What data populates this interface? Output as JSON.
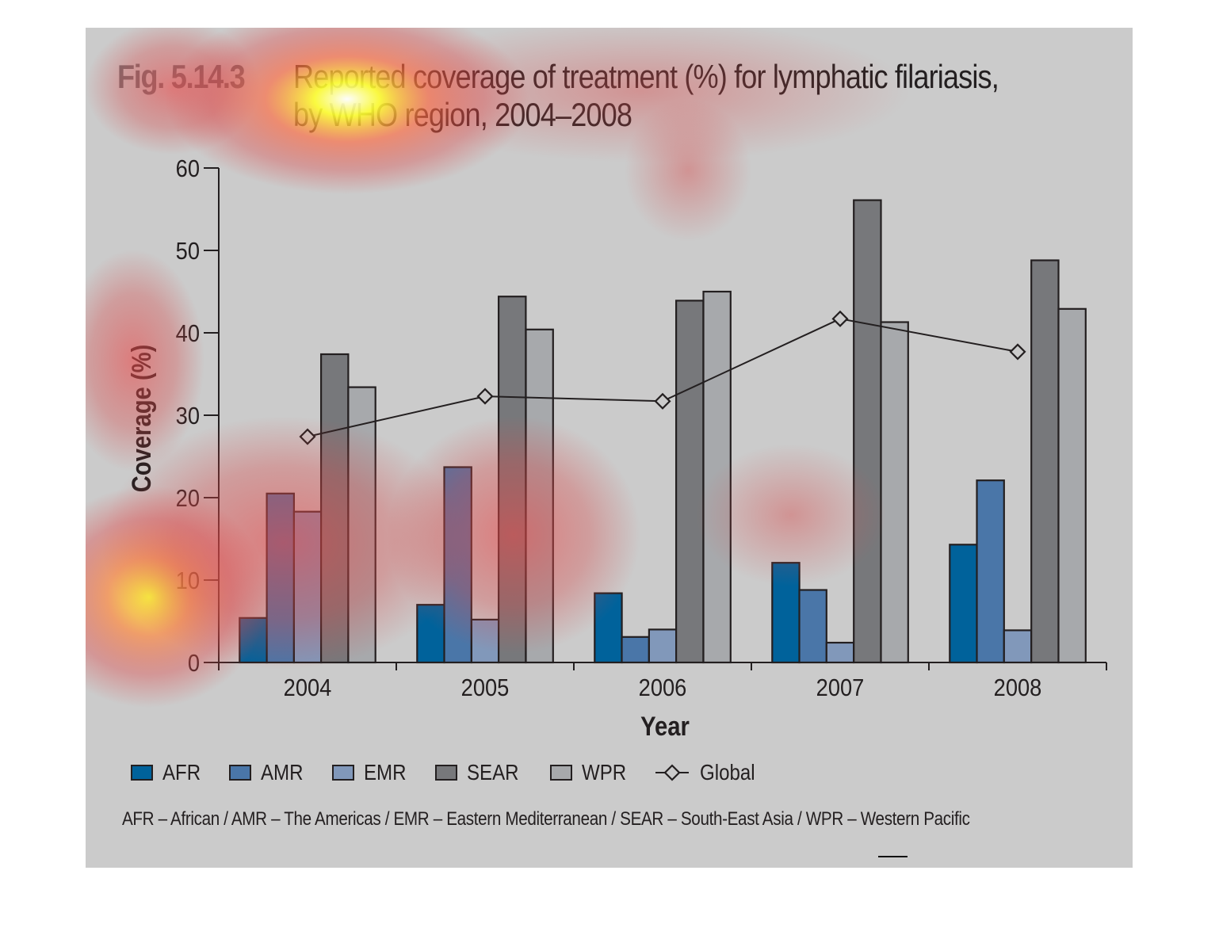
{
  "figure": {
    "label": "Fig. 5.14.3",
    "title_line1": "Reported coverage of treatment (%) for lymphatic filariasis,",
    "title_line2": "by WHO region, 2004–2008",
    "footnote": "AFR – African / AMR – The Americas / EMR – Eastern Mediterranean / SEAR – South-East Asia / WPR – Western Pacific"
  },
  "legend": {
    "items": [
      {
        "label": "AFR",
        "color": "#00629b"
      },
      {
        "label": "AMR",
        "color": "#4a76a8"
      },
      {
        "label": "EMR",
        "color": "#8198ba"
      },
      {
        "label": "SEAR",
        "color": "#77787b"
      },
      {
        "label": "WPR",
        "color": "#a7a9ac"
      },
      {
        "label": "Global",
        "icon": "diamond-line-icon"
      }
    ]
  },
  "chart_data": {
    "type": "bar",
    "title": "Reported coverage of treatment (%) for lymphatic filariasis, by WHO region, 2004–2008",
    "xlabel": "Year",
    "ylabel": "Coverage (%)",
    "ylim": [
      0,
      60
    ],
    "yticks": [
      "0",
      "10",
      "20",
      "30",
      "40",
      "50",
      "60"
    ],
    "categories": [
      "2004",
      "2005",
      "2006",
      "2007",
      "2008"
    ],
    "grid": false,
    "legend_position": "bottom",
    "series": [
      {
        "name": "AFR",
        "color": "#00629b",
        "values": [
          5.4,
          7.0,
          8.4,
          12.1,
          14.3
        ]
      },
      {
        "name": "AMR",
        "color": "#4a76a8",
        "values": [
          20.5,
          23.7,
          3.1,
          8.8,
          22.1
        ]
      },
      {
        "name": "EMR",
        "color": "#8198ba",
        "values": [
          18.3,
          5.2,
          4.0,
          2.4,
          3.9
        ]
      },
      {
        "name": "SEAR",
        "color": "#77787b",
        "values": [
          37.4,
          44.4,
          43.9,
          56.1,
          48.8
        ]
      },
      {
        "name": "WPR",
        "color": "#a7a9ac",
        "values": [
          33.4,
          40.4,
          45.0,
          41.3,
          42.9
        ]
      }
    ],
    "line_series": {
      "name": "Global",
      "type": "line",
      "marker": "diamond",
      "values": [
        27.4,
        32.3,
        31.7,
        41.7,
        37.7
      ]
    }
  }
}
